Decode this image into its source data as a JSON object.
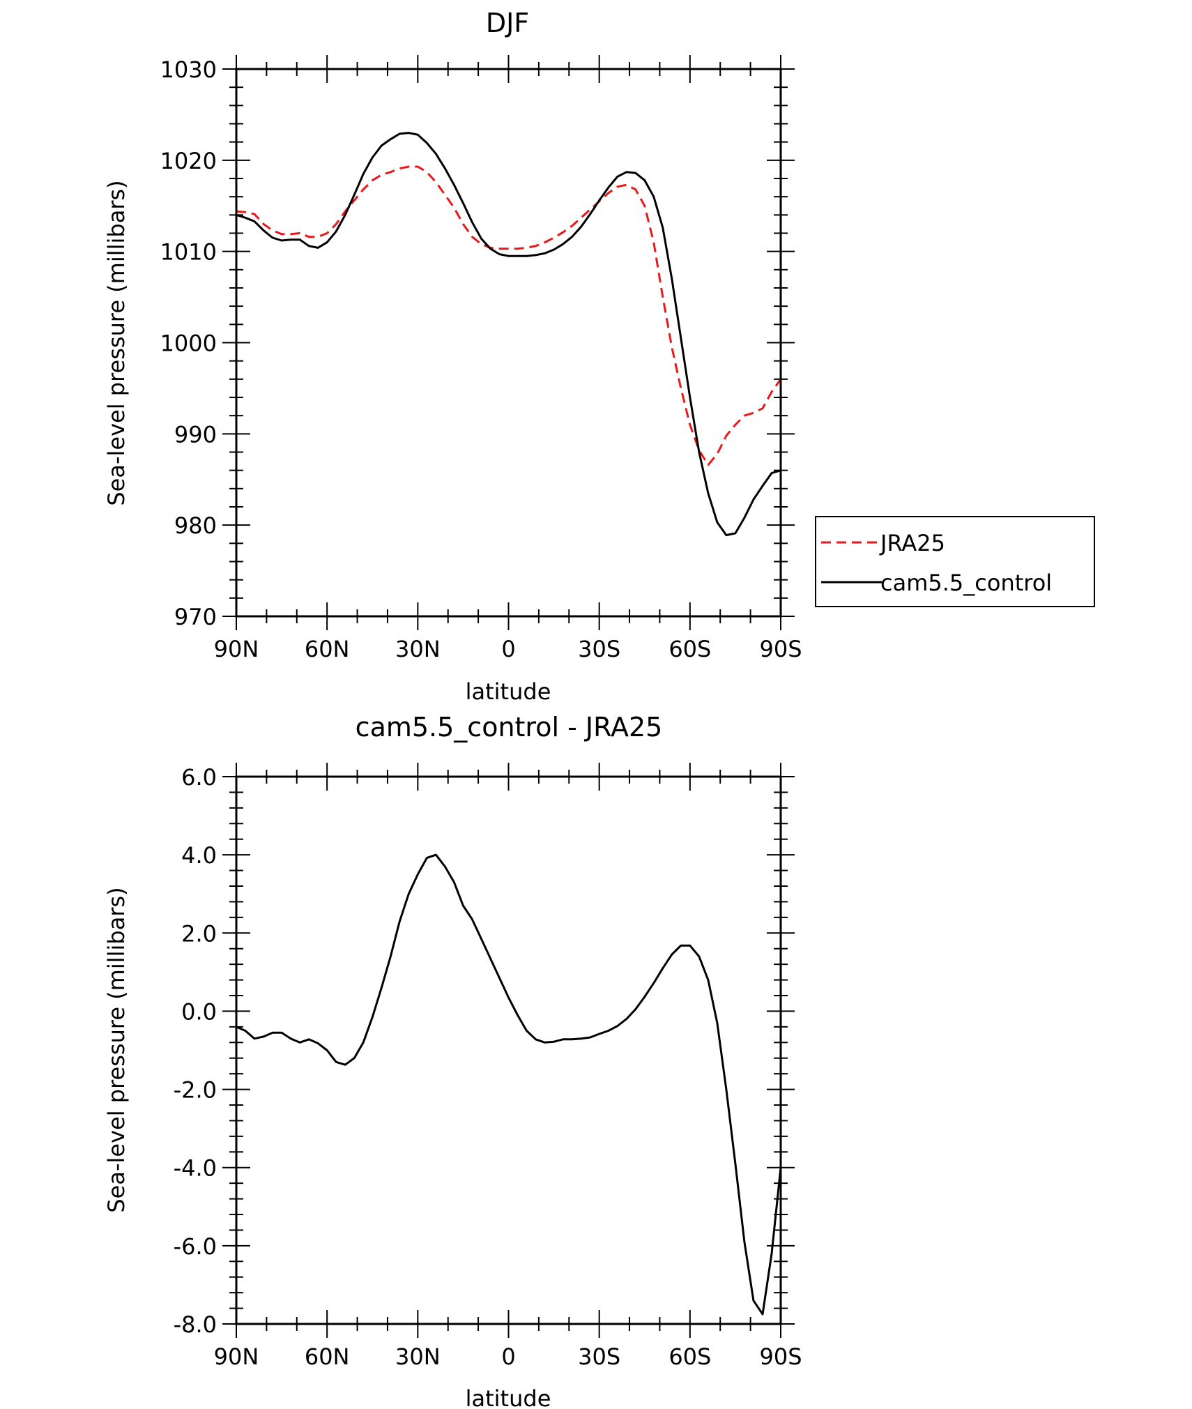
{
  "chart_data": [
    {
      "type": "line",
      "title": "DJF",
      "xlabel": "latitude",
      "ylabel": "Sea-level pressure (millibars)",
      "x_tick_labels": [
        "90N",
        "60N",
        "30N",
        "0",
        "30S",
        "60S",
        "90S"
      ],
      "x_tick_values": [
        90,
        60,
        30,
        0,
        -30,
        -60,
        -90
      ],
      "xlim": [
        90,
        -90
      ],
      "ylim": [
        970,
        1030
      ],
      "y_tick_labels": [
        "970",
        "980",
        "990",
        "1000",
        "1010",
        "1020",
        "1030"
      ],
      "y_tick_values": [
        970,
        980,
        990,
        1000,
        1010,
        1020,
        1030
      ],
      "grid": false,
      "legend": {
        "placement": "outside-right",
        "entries": [
          "JRA25",
          "cam5.5_control"
        ]
      },
      "series": [
        {
          "name": "JRA25",
          "color": "#e8191b",
          "dash": "dashed",
          "x": [
            90,
            87,
            84,
            81,
            78,
            75,
            72,
            69,
            66,
            63,
            60,
            57,
            54,
            51,
            48,
            45,
            42,
            39,
            36,
            33,
            30,
            27,
            24,
            21,
            18,
            15,
            12,
            9,
            6,
            3,
            0,
            -3,
            -6,
            -9,
            -12,
            -15,
            -18,
            -21,
            -24,
            -27,
            -30,
            -33,
            -36,
            -39,
            -42,
            -45,
            -48,
            -51,
            -54,
            -57,
            -60,
            -63,
            -66,
            -69,
            -72,
            -75,
            -78,
            -81,
            -84,
            -87,
            -90
          ],
          "values": [
            1014.4,
            1014.3,
            1014.1,
            1013.0,
            1012.3,
            1011.9,
            1011.9,
            1012.0,
            1011.6,
            1011.6,
            1012.0,
            1013.0,
            1014.4,
            1015.6,
            1016.8,
            1017.8,
            1018.4,
            1018.7,
            1019.1,
            1019.3,
            1019.3,
            1018.7,
            1017.6,
            1016.2,
            1014.8,
            1013.0,
            1011.6,
            1010.8,
            1010.4,
            1010.3,
            1010.3,
            1010.3,
            1010.4,
            1010.6,
            1011.0,
            1011.5,
            1012.1,
            1012.8,
            1013.7,
            1014.6,
            1015.5,
            1016.4,
            1017.1,
            1017.3,
            1016.8,
            1015.0,
            1011.0,
            1005.0,
            999.5,
            995.0,
            991.0,
            988.2,
            986.6,
            987.8,
            989.8,
            991.0,
            992.0,
            992.3,
            992.8,
            994.6,
            996.0
          ]
        },
        {
          "name": "cam5.5_control",
          "color": "#000000",
          "dash": "solid",
          "x": [
            90,
            87,
            84,
            81,
            78,
            75,
            72,
            69,
            66,
            63,
            60,
            57,
            54,
            51,
            48,
            45,
            42,
            39,
            36,
            33,
            30,
            27,
            24,
            21,
            18,
            15,
            12,
            9,
            6,
            3,
            0,
            -3,
            -6,
            -9,
            -12,
            -15,
            -18,
            -21,
            -24,
            -27,
            -30,
            -33,
            -36,
            -39,
            -42,
            -45,
            -48,
            -51,
            -54,
            -57,
            -60,
            -63,
            -66,
            -69,
            -72,
            -75,
            -78,
            -81,
            -84,
            -87,
            -90
          ],
          "values": [
            1014.0,
            1013.7,
            1013.3,
            1012.3,
            1011.5,
            1011.2,
            1011.3,
            1011.3,
            1010.6,
            1010.4,
            1011.0,
            1012.2,
            1014.0,
            1016.2,
            1018.5,
            1020.3,
            1021.6,
            1022.3,
            1022.9,
            1023.0,
            1022.8,
            1021.9,
            1020.7,
            1019.1,
            1017.3,
            1015.3,
            1013.2,
            1011.4,
            1010.3,
            1009.7,
            1009.5,
            1009.5,
            1009.5,
            1009.6,
            1009.8,
            1010.2,
            1010.8,
            1011.6,
            1012.7,
            1014.1,
            1015.6,
            1017.0,
            1018.2,
            1018.7,
            1018.6,
            1017.8,
            1016.0,
            1012.6,
            1007.0,
            1000.5,
            994.0,
            988.0,
            983.5,
            980.3,
            978.9,
            979.1,
            980.8,
            982.8,
            984.3,
            985.7,
            986.0
          ]
        }
      ]
    },
    {
      "type": "line",
      "title": "cam5.5_control - JRA25",
      "xlabel": "latitude",
      "ylabel": "Sea-level pressure (millibars)",
      "x_tick_labels": [
        "90N",
        "60N",
        "30N",
        "0",
        "30S",
        "60S",
        "90S"
      ],
      "x_tick_values": [
        90,
        60,
        30,
        0,
        -30,
        -60,
        -90
      ],
      "xlim": [
        90,
        -90
      ],
      "ylim": [
        -8,
        6
      ],
      "y_tick_labels": [
        "-8.0",
        "-6.0",
        "-4.0",
        "-2.0",
        "0.0",
        "2.0",
        "4.0",
        "6.0"
      ],
      "y_tick_values": [
        -8,
        -6,
        -4,
        -2,
        0,
        2,
        4,
        6
      ],
      "grid": false,
      "series": [
        {
          "color": "#000000",
          "dash": "solid",
          "x": [
            90,
            87,
            84,
            81,
            78,
            75,
            72,
            69,
            66,
            63,
            60,
            57,
            54,
            51,
            48,
            45,
            42,
            39,
            36,
            33,
            30,
            27,
            24,
            21,
            18,
            15,
            12,
            9,
            6,
            3,
            0,
            -3,
            -6,
            -9,
            -12,
            -15,
            -18,
            -21,
            -24,
            -27,
            -30,
            -33,
            -36,
            -39,
            -42,
            -45,
            -48,
            -51,
            -54,
            -57,
            -60,
            -63,
            -66,
            -69,
            -72,
            -75,
            -78,
            -81,
            -84,
            -87,
            -90
          ],
          "values": [
            -0.4,
            -0.5,
            -0.7,
            -0.65,
            -0.55,
            -0.55,
            -0.7,
            -0.8,
            -0.72,
            -0.82,
            -1.0,
            -1.3,
            -1.37,
            -1.2,
            -0.8,
            -0.15,
            0.6,
            1.4,
            2.3,
            3.0,
            3.5,
            3.92,
            4.0,
            3.7,
            3.3,
            2.7,
            2.35,
            1.85,
            1.35,
            0.85,
            0.35,
            -0.1,
            -0.5,
            -0.72,
            -0.8,
            -0.78,
            -0.72,
            -0.72,
            -0.7,
            -0.67,
            -0.58,
            -0.5,
            -0.38,
            -0.2,
            0.05,
            0.37,
            0.72,
            1.1,
            1.45,
            1.68,
            1.68,
            1.4,
            0.8,
            -0.3,
            -2.0,
            -3.9,
            -5.9,
            -7.4,
            -7.75,
            -6.2,
            -4.0
          ]
        }
      ]
    }
  ]
}
